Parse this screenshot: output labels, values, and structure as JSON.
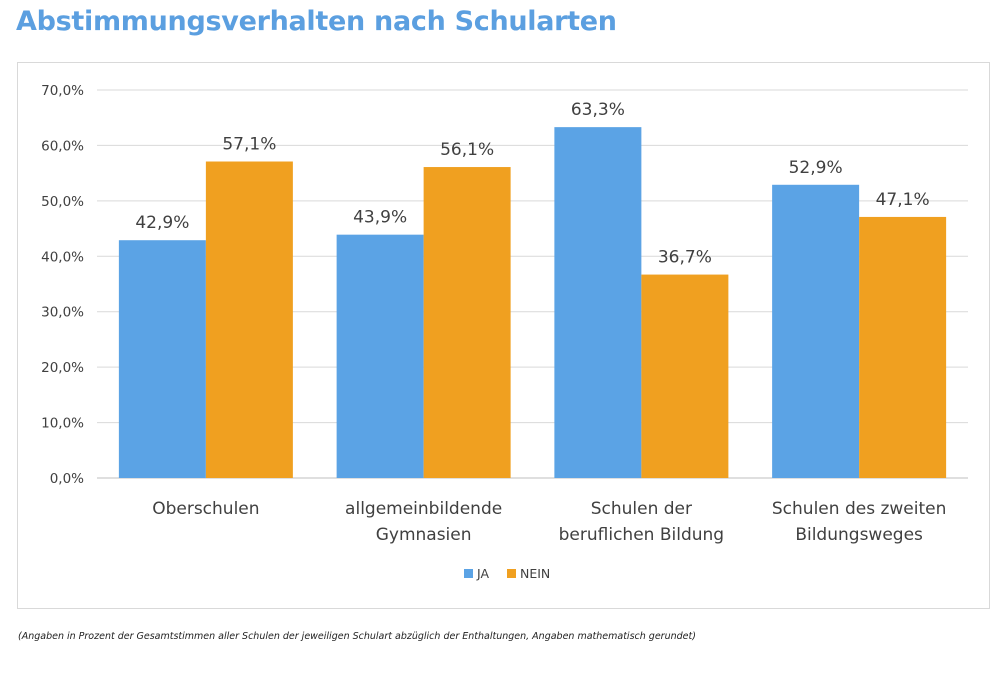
{
  "page": {
    "title": "Abstimmungsverhalten nach Schularten",
    "footnote": "(Angaben in Prozent der Gesamtstimmen aller Schulen der jeweiligen Schulart abzüglich der Enthaltungen, Angaben mathematisch gerundet)"
  },
  "chart_data": {
    "type": "bar",
    "title": "",
    "xlabel": "",
    "ylabel": "",
    "categories": [
      [
        "Oberschulen"
      ],
      [
        "allgemeinbildende",
        "Gymnasien"
      ],
      [
        "Schulen der",
        "beruflichen Bildung"
      ],
      [
        "Schulen des zweiten",
        "Bildungsweges"
      ]
    ],
    "series": [
      {
        "name": "JA",
        "color": "#5ba3e5",
        "values": [
          42.9,
          43.9,
          63.3,
          52.9
        ],
        "labels": [
          "42,9%",
          "43,9%",
          "63,3%",
          "52,9%"
        ]
      },
      {
        "name": "NEIN",
        "color": "#f0a020",
        "values": [
          57.1,
          56.1,
          36.7,
          47.1
        ],
        "labels": [
          "57,1%",
          "56,1%",
          "36,7%",
          "47,1%"
        ]
      }
    ],
    "ylim": [
      0,
      70
    ],
    "yticks": [
      0,
      10,
      20,
      30,
      40,
      50,
      60,
      70
    ],
    "ytick_labels": [
      "0,0%",
      "10,0%",
      "20,0%",
      "30,0%",
      "40,0%",
      "50,0%",
      "60,0%",
      "70,0%"
    ],
    "grid": true,
    "legend_position": "bottom"
  }
}
